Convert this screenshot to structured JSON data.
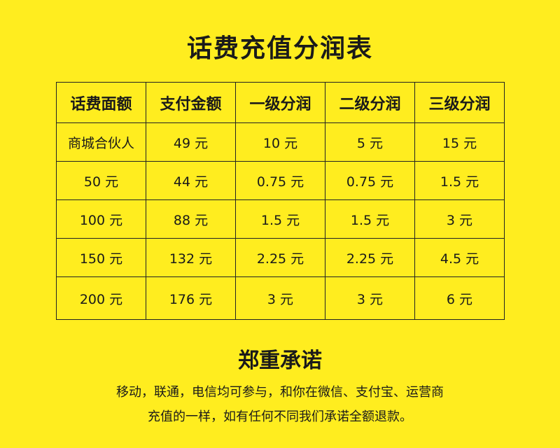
{
  "title": "话费充值分润表",
  "table": {
    "headers": [
      "话费面额",
      "支付金额",
      "一级分润",
      "二级分润",
      "三级分润"
    ],
    "rows": [
      [
        "商城合伙人",
        "49 元",
        "10 元",
        "5 元",
        "15 元"
      ],
      [
        "50 元",
        "44 元",
        "0.75 元",
        "0.75 元",
        "1.5 元"
      ],
      [
        "100 元",
        "88 元",
        "1.5 元",
        "1.5 元",
        "3 元"
      ],
      [
        "150 元",
        "132 元",
        "2.25 元",
        "2.25 元",
        "4.5 元"
      ],
      [
        "200 元",
        "176 元",
        "3 元",
        "3 元",
        "6 元"
      ]
    ]
  },
  "promise": {
    "heading": "郑重承诺",
    "line1": "移动，联通，电信均可参与，和你在微信、支付宝、运营商",
    "line2": "充值的一样，如有任何不同我们承诺全额退款。"
  },
  "colors": {
    "background": "#ffed1f",
    "text": "#1a1a1a"
  }
}
